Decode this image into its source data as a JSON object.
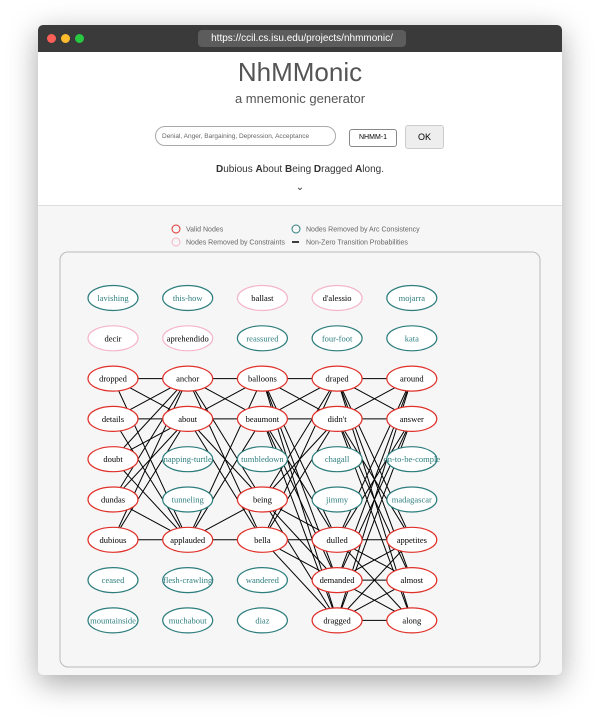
{
  "browser": {
    "url": "https://ccil.cs.isu.edu/projects/nhmmonic/"
  },
  "header": {
    "title": "NhMMonic",
    "subtitle": "a mnemonic generator",
    "input_placeholder": "Denial, Anger, Bargaining, Depression, Acceptance",
    "model": "NHMM-1",
    "button": "OK",
    "result": "Dubious About Being Dragged Along."
  },
  "legend": [
    {
      "label": "Valid Nodes",
      "color": "#e0302a"
    },
    {
      "label": "Nodes Removed by Arc Consistency",
      "color": "#2e7d7d"
    },
    {
      "label": "Nodes Removed by Constraints",
      "color": "#f4b6c8"
    },
    {
      "label": "Non-Zero Transition Probabilities",
      "color": "#000000"
    }
  ],
  "columns": [
    [
      {
        "label": "lavishing",
        "color": "#2e7d7d"
      },
      {
        "label": "decir",
        "color": "#f4b6c8"
      },
      {
        "label": "dropped",
        "color": "#e0302a"
      },
      {
        "label": "details",
        "color": "#e0302a"
      },
      {
        "label": "doubt",
        "color": "#e0302a"
      },
      {
        "label": "dundas",
        "color": "#e0302a"
      },
      {
        "label": "dubious",
        "color": "#e0302a"
      },
      {
        "label": "ceased",
        "color": "#2e7d7d"
      },
      {
        "label": "mountainside",
        "color": "#2e7d7d"
      }
    ],
    [
      {
        "label": "this-how",
        "color": "#2e7d7d"
      },
      {
        "label": "aprehendido",
        "color": "#f4b6c8"
      },
      {
        "label": "anchor",
        "color": "#e0302a"
      },
      {
        "label": "about",
        "color": "#e0302a"
      },
      {
        "label": "napping-turtle",
        "color": "#2e7d7d"
      },
      {
        "label": "tunneling",
        "color": "#2e7d7d"
      },
      {
        "label": "applauded",
        "color": "#e0302a"
      },
      {
        "label": "flesh-crawling",
        "color": "#2e7d7d"
      },
      {
        "label": "muchabout",
        "color": "#2e7d7d"
      }
    ],
    [
      {
        "label": "ballast",
        "color": "#f4b6c8"
      },
      {
        "label": "reassured",
        "color": "#2e7d7d"
      },
      {
        "label": "balloons",
        "color": "#e0302a"
      },
      {
        "label": "beaumont",
        "color": "#e0302a"
      },
      {
        "label": "tumbledown",
        "color": "#2e7d7d"
      },
      {
        "label": "being",
        "color": "#e0302a"
      },
      {
        "label": "bella",
        "color": "#e0302a"
      },
      {
        "label": "wandered",
        "color": "#2e7d7d"
      },
      {
        "label": "diaz",
        "color": "#2e7d7d"
      }
    ],
    [
      {
        "label": "d'alessio",
        "color": "#f4b6c8"
      },
      {
        "label": "four-foot",
        "color": "#2e7d7d"
      },
      {
        "label": "draped",
        "color": "#e0302a"
      },
      {
        "label": "didn't",
        "color": "#e0302a"
      },
      {
        "label": "chagall",
        "color": "#2e7d7d"
      },
      {
        "label": "jimmy",
        "color": "#2e7d7d"
      },
      {
        "label": "dulled",
        "color": "#e0302a"
      },
      {
        "label": "demanded",
        "color": "#e0302a"
      },
      {
        "label": "dragged",
        "color": "#e0302a"
      }
    ],
    [
      {
        "label": "mojarra",
        "color": "#2e7d7d"
      },
      {
        "label": "kata",
        "color": "#2e7d7d"
      },
      {
        "label": "around",
        "color": "#e0302a"
      },
      {
        "label": "answer",
        "color": "#e0302a"
      },
      {
        "label": "on-to-be-comple",
        "color": "#2e7d7d"
      },
      {
        "label": "madagascar",
        "color": "#2e7d7d"
      },
      {
        "label": "appetites",
        "color": "#e0302a"
      },
      {
        "label": "almost",
        "color": "#e0302a"
      },
      {
        "label": "along",
        "color": "#e0302a"
      }
    ]
  ]
}
